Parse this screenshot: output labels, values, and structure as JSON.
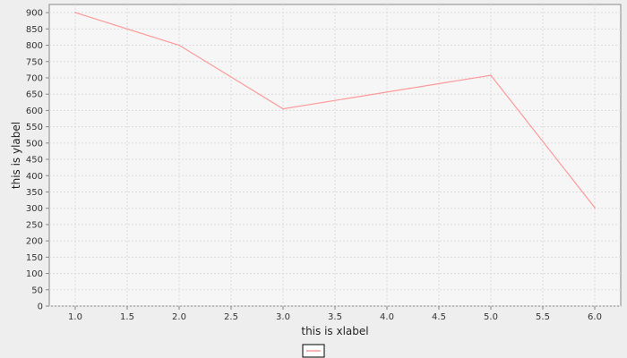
{
  "chart_data": {
    "type": "line",
    "title": "",
    "xlabel": "this is xlabel",
    "ylabel": "this is ylabel",
    "xlim": [
      0.75,
      6.25
    ],
    "ylim": [
      0,
      925
    ],
    "xticks": [
      "1.0",
      "1.5",
      "2.0",
      "2.5",
      "3.0",
      "3.5",
      "4.0",
      "4.5",
      "5.0",
      "5.5",
      "6.0"
    ],
    "yticks": [
      "0",
      "50",
      "100",
      "150",
      "200",
      "250",
      "300",
      "350",
      "400",
      "450",
      "500",
      "550",
      "600",
      "650",
      "700",
      "750",
      "800",
      "850",
      "900"
    ],
    "grid": true,
    "legend_position": "bottom-center",
    "series": [
      {
        "color": "#ff9999",
        "x": [
          1.0,
          2.0,
          3.0,
          5.0,
          6.0
        ],
        "y": [
          900,
          800,
          605,
          708,
          302
        ]
      }
    ],
    "colors": {
      "background": "#eeeeee",
      "plot_background": "#f6f6f6",
      "grid": "#dcdcdc",
      "axis": "#888888"
    }
  }
}
